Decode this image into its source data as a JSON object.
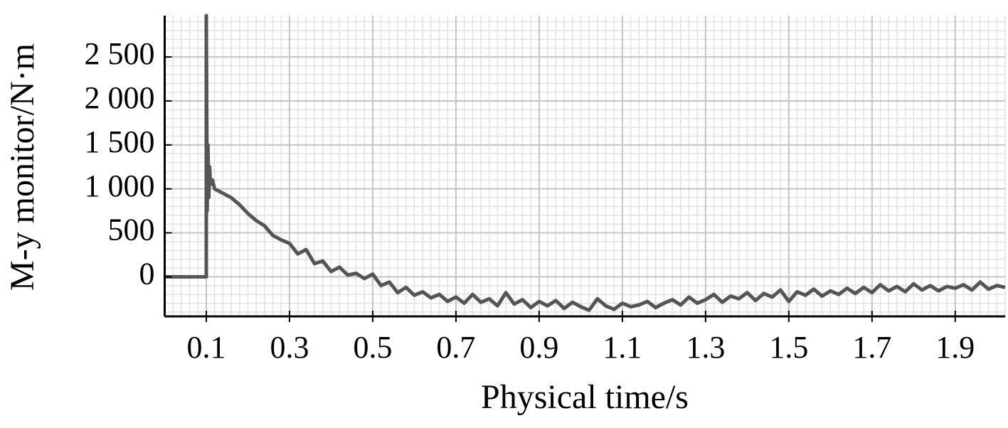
{
  "chart_data": {
    "type": "line",
    "xlabel": "Physical time/s",
    "ylabel": "M-y monitor/N·m",
    "xlim": [
      0,
      2.02
    ],
    "ylim": [
      -450,
      2970
    ],
    "xticks": [
      0.1,
      0.3,
      0.5,
      0.7,
      0.9,
      1.1,
      1.3,
      1.5,
      1.7,
      1.9
    ],
    "yticks": [
      0,
      500,
      {
        "value": 1000,
        "label": "1 000"
      },
      {
        "value": 1500,
        "label": "1 500"
      },
      {
        "value": 2000,
        "label": "2 000"
      },
      {
        "value": 2500,
        "label": "2 500"
      }
    ],
    "grid": true,
    "minor_grid": {
      "x_step": 0.02,
      "y_step": 100
    },
    "series": [
      {
        "color": "#555555",
        "x": [
          0,
          0.1,
          0.1,
          0.102,
          0.104,
          0.106,
          0.108,
          0.11,
          0.115,
          0.12,
          0.14,
          0.16,
          0.18,
          0.2,
          0.22,
          0.24,
          0.26,
          0.28,
          0.3,
          0.32,
          0.34,
          0.36,
          0.38,
          0.4,
          0.42,
          0.44,
          0.46,
          0.48,
          0.5,
          0.52,
          0.54,
          0.56,
          0.58,
          0.6,
          0.62,
          0.64,
          0.66,
          0.68,
          0.7,
          0.72,
          0.74,
          0.76,
          0.78,
          0.8,
          0.82,
          0.84,
          0.86,
          0.88,
          0.9,
          0.92,
          0.94,
          0.96,
          0.98,
          1.0,
          1.02,
          1.04,
          1.06,
          1.08,
          1.1,
          1.12,
          1.14,
          1.16,
          1.18,
          1.2,
          1.22,
          1.24,
          1.26,
          1.28,
          1.3,
          1.32,
          1.34,
          1.36,
          1.38,
          1.4,
          1.42,
          1.44,
          1.46,
          1.48,
          1.5,
          1.52,
          1.54,
          1.56,
          1.58,
          1.6,
          1.62,
          1.64,
          1.66,
          1.68,
          1.7,
          1.72,
          1.74,
          1.76,
          1.78,
          1.8,
          1.82,
          1.84,
          1.86,
          1.88,
          1.9,
          1.92,
          1.94,
          1.96,
          1.98,
          2.0,
          2.02
        ],
        "values": [
          0,
          0,
          2970,
          750,
          1500,
          900,
          1250,
          1050,
          1100,
          1000,
          950,
          900,
          820,
          720,
          640,
          580,
          470,
          420,
          380,
          260,
          310,
          150,
          180,
          60,
          110,
          20,
          40,
          -20,
          30,
          -100,
          -60,
          -180,
          -120,
          -210,
          -170,
          -240,
          -200,
          -280,
          -230,
          -300,
          -200,
          -290,
          -250,
          -330,
          -180,
          -310,
          -260,
          -350,
          -280,
          -330,
          -270,
          -360,
          -290,
          -340,
          -380,
          -250,
          -330,
          -370,
          -300,
          -340,
          -320,
          -280,
          -350,
          -300,
          -260,
          -320,
          -230,
          -300,
          -260,
          -200,
          -290,
          -220,
          -250,
          -180,
          -270,
          -190,
          -230,
          -150,
          -280,
          -170,
          -210,
          -140,
          -220,
          -160,
          -200,
          -130,
          -190,
          -120,
          -180,
          -90,
          -160,
          -110,
          -170,
          -80,
          -150,
          -100,
          -160,
          -110,
          -130,
          -90,
          -150,
          -60,
          -140,
          -100,
          -120
        ]
      }
    ]
  }
}
